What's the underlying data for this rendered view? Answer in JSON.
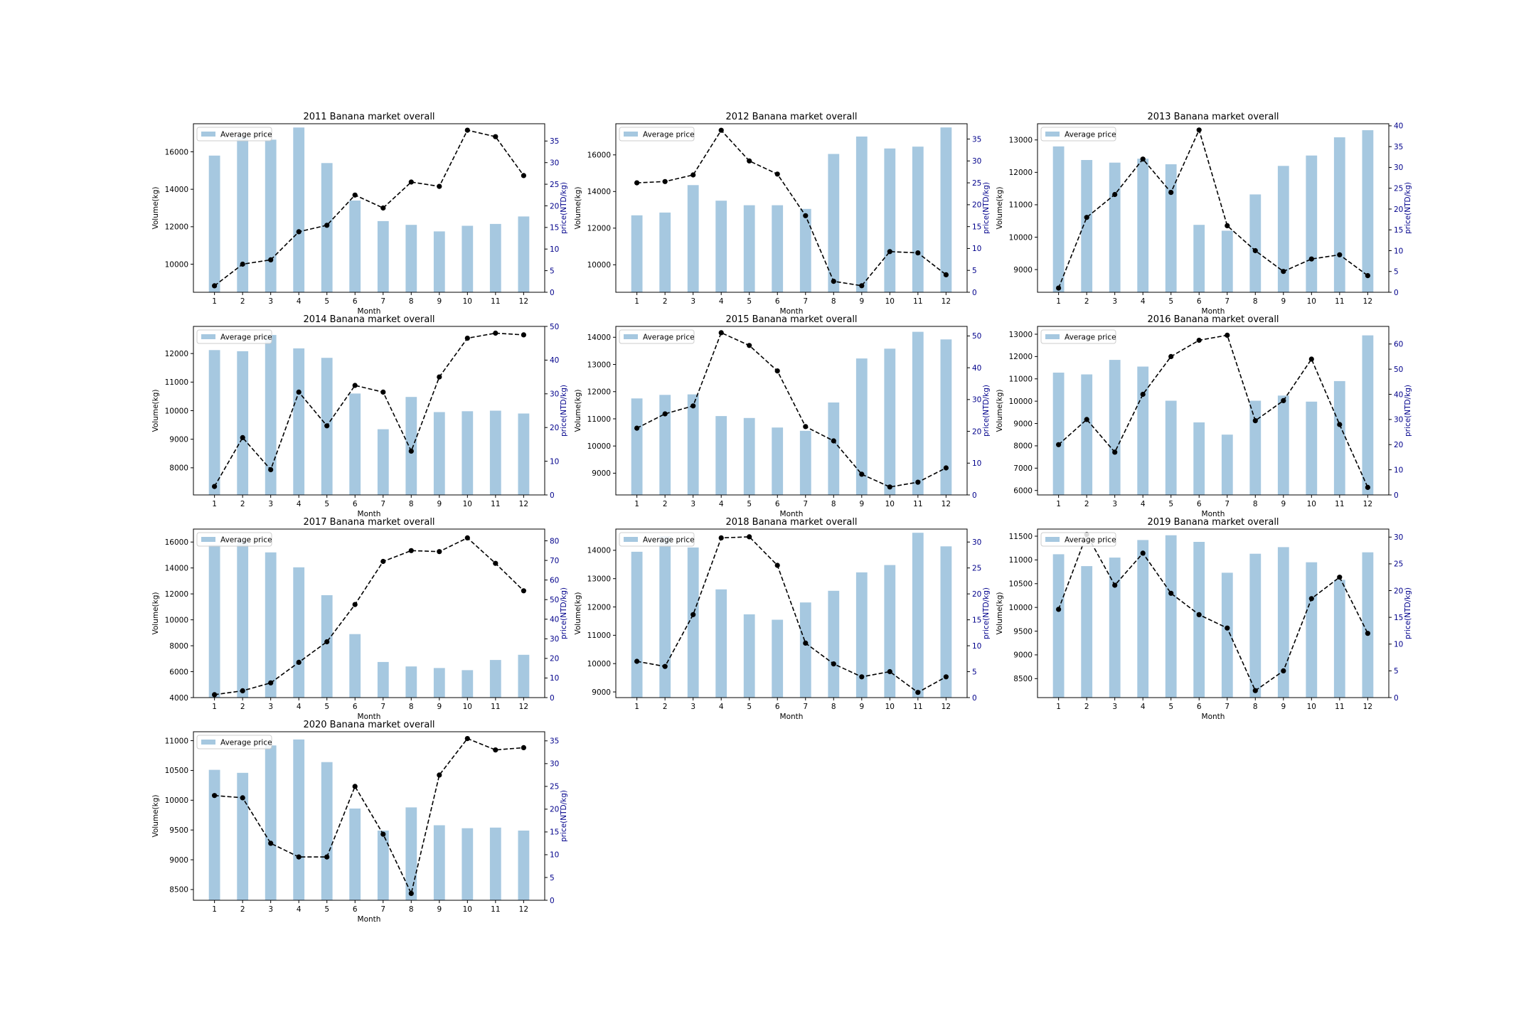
{
  "chart_data": [
    {
      "type": "bar",
      "title": "2011 Banana market overall",
      "xlabel": "Month",
      "ylabel": "Volume(kg)",
      "y2label": "price(NTD/kg)",
      "legend": "top-left",
      "legend_label": "Average price",
      "categories": [
        "1",
        "2",
        "3",
        "4",
        "5",
        "6",
        "7",
        "8",
        "9",
        "10",
        "11",
        "12"
      ],
      "bar_values": [
        15800,
        16800,
        16650,
        17300,
        15400,
        13400,
        12300,
        12100,
        11750,
        12050,
        12150,
        12550
      ],
      "ylim": [
        8500,
        17500
      ],
      "yticks": [
        10000,
        12000,
        14000,
        16000
      ],
      "line_values": [
        1.5,
        6.5,
        7.5,
        14,
        15.5,
        22.5,
        19.5,
        25.5,
        24.5,
        37.5,
        36,
        27
      ],
      "y2lim": [
        0,
        39
      ],
      "y2ticks": [
        0,
        5,
        10,
        15,
        20,
        25,
        30,
        35
      ],
      "bar_color": "#a6c8e0",
      "line_color": "#000000",
      "axis2_color": "#00008b"
    },
    {
      "type": "bar",
      "title": "2012 Banana market overall",
      "xlabel": "Month",
      "ylabel": "Volume(kg)",
      "y2label": "price(NTD/kg)",
      "legend": "top-left",
      "legend_label": "Average price",
      "categories": [
        "1",
        "2",
        "3",
        "4",
        "5",
        "6",
        "7",
        "8",
        "9",
        "10",
        "11",
        "12"
      ],
      "bar_values": [
        12700,
        12850,
        14350,
        13500,
        13250,
        13250,
        13050,
        16050,
        17000,
        16350,
        16450,
        17500
      ],
      "ylim": [
        8500,
        17700
      ],
      "yticks": [
        10000,
        12000,
        14000,
        16000
      ],
      "line_values": [
        25,
        25.3,
        26.8,
        37,
        30,
        27,
        17.5,
        2.5,
        1.5,
        9.3,
        9,
        4
      ],
      "y2lim": [
        0,
        38.5
      ],
      "y2ticks": [
        0,
        5,
        10,
        15,
        20,
        25,
        30,
        35
      ],
      "bar_color": "#a6c8e0",
      "line_color": "#000000",
      "axis2_color": "#00008b"
    },
    {
      "type": "bar",
      "title": "2013 Banana market overall",
      "xlabel": "Month",
      "ylabel": "Volume(kg)",
      "y2label": "price(NTD/kg)",
      "legend": "top-left",
      "legend_label": "Average price",
      "categories": [
        "1",
        "2",
        "3",
        "4",
        "5",
        "6",
        "7",
        "8",
        "9",
        "10",
        "11",
        "12"
      ],
      "bar_values": [
        12800,
        12380,
        12300,
        12420,
        12250,
        10380,
        10200,
        11320,
        12200,
        12520,
        13080,
        13300
      ],
      "ylim": [
        8300,
        13500
      ],
      "yticks": [
        9000,
        10000,
        11000,
        12000,
        13000
      ],
      "line_values": [
        1,
        18,
        23.5,
        32,
        24,
        39,
        16,
        10,
        5,
        8,
        9,
        4
      ],
      "y2lim": [
        0,
        40.5
      ],
      "y2ticks": [
        0,
        5,
        10,
        15,
        20,
        25,
        30,
        35,
        40
      ],
      "bar_color": "#a6c8e0",
      "line_color": "#000000",
      "axis2_color": "#00008b"
    },
    {
      "type": "bar",
      "title": "2014 Banana market overall",
      "xlabel": "Month",
      "ylabel": "Volume(kg)",
      "y2label": "price(NTD/kg)",
      "legend": "top-left",
      "legend_label": "Average price",
      "categories": [
        "1",
        "2",
        "3",
        "4",
        "5",
        "6",
        "7",
        "8",
        "9",
        "10",
        "11",
        "12"
      ],
      "bar_values": [
        12120,
        12080,
        12650,
        12180,
        11850,
        10600,
        9350,
        10480,
        9950,
        9980,
        10000,
        9900
      ],
      "ylim": [
        7050,
        12950
      ],
      "yticks": [
        8000,
        9000,
        10000,
        11000,
        12000
      ],
      "line_values": [
        2.5,
        17,
        7.5,
        30.5,
        20.5,
        32.5,
        30.5,
        13,
        35,
        46.5,
        48,
        47.5
      ],
      "y2lim": [
        0,
        50
      ],
      "y2ticks": [
        0,
        10,
        20,
        30,
        40,
        50
      ],
      "bar_color": "#a6c8e0",
      "line_color": "#000000",
      "axis2_color": "#00008b"
    },
    {
      "type": "bar",
      "title": "2015 Banana market overall",
      "xlabel": "Month",
      "ylabel": "Volume(kg)",
      "y2label": "price(NTD/kg)",
      "legend": "top-left",
      "legend_label": "Average price",
      "categories": [
        "1",
        "2",
        "3",
        "4",
        "5",
        "6",
        "7",
        "8",
        "9",
        "10",
        "11",
        "12"
      ],
      "bar_values": [
        11750,
        11880,
        11900,
        11100,
        11030,
        10680,
        10560,
        11600,
        13220,
        13580,
        14200,
        13920
      ],
      "ylim": [
        8200,
        14400
      ],
      "yticks": [
        9000,
        10000,
        11000,
        12000,
        13000,
        14000
      ],
      "line_values": [
        21,
        25.5,
        28,
        51,
        47,
        39,
        21.5,
        17,
        6.5,
        2.5,
        4,
        8.5
      ],
      "y2lim": [
        0,
        53
      ],
      "y2ticks": [
        0,
        10,
        20,
        30,
        40,
        50
      ],
      "bar_color": "#a6c8e0",
      "line_color": "#000000",
      "axis2_color": "#00008b"
    },
    {
      "type": "bar",
      "title": "2016 Banana market overall",
      "xlabel": "Month",
      "ylabel": "Volume(kg)",
      "y2label": "price(NTD/kg)",
      "legend": "top-left",
      "legend_label": "Average price",
      "categories": [
        "1",
        "2",
        "3",
        "4",
        "5",
        "6",
        "7",
        "8",
        "9",
        "10",
        "11",
        "12"
      ],
      "bar_values": [
        11280,
        11200,
        11850,
        11550,
        10020,
        9050,
        8500,
        10020,
        10250,
        9980,
        10900,
        12950
      ],
      "ylim": [
        5800,
        13350
      ],
      "yticks": [
        6000,
        7000,
        8000,
        9000,
        10000,
        11000,
        12000,
        13000
      ],
      "line_values": [
        20,
        30,
        17,
        40,
        55,
        61.5,
        63.5,
        29.5,
        37.5,
        54,
        28,
        3
      ],
      "y2lim": [
        0,
        67
      ],
      "y2ticks": [
        0,
        10,
        20,
        30,
        40,
        50,
        60
      ],
      "bar_color": "#a6c8e0",
      "line_color": "#000000",
      "axis2_color": "#00008b"
    },
    {
      "type": "bar",
      "title": "2017 Banana market overall",
      "xlabel": "Month",
      "ylabel": "Volume(kg)",
      "y2label": "price(NTD/kg)",
      "legend": "top-left",
      "legend_label": "Average price",
      "categories": [
        "1",
        "2",
        "3",
        "4",
        "5",
        "6",
        "7",
        "8",
        "9",
        "10",
        "11",
        "12"
      ],
      "bar_values": [
        15800,
        16100,
        15200,
        14050,
        11900,
        8900,
        6750,
        6400,
        6280,
        6120,
        6900,
        7300
      ],
      "ylim": [
        4000,
        17000
      ],
      "yticks": [
        4000,
        6000,
        8000,
        10000,
        12000,
        14000,
        16000
      ],
      "line_values": [
        1.5,
        3.5,
        7.5,
        18,
        28.5,
        47.5,
        69.5,
        75,
        74.5,
        81.5,
        68.5,
        54.5
      ],
      "y2lim": [
        0,
        86
      ],
      "y2ticks": [
        0,
        10,
        20,
        30,
        40,
        50,
        60,
        70,
        80
      ],
      "bar_color": "#a6c8e0",
      "line_color": "#000000",
      "axis2_color": "#00008b"
    },
    {
      "type": "bar",
      "title": "2018 Banana market overall",
      "xlabel": "Month",
      "ylabel": "Volume(kg)",
      "y2label": "price(NTD/kg)",
      "legend": "top-left",
      "legend_label": "Average price",
      "categories": [
        "1",
        "2",
        "3",
        "4",
        "5",
        "6",
        "7",
        "8",
        "9",
        "10",
        "11",
        "12"
      ],
      "bar_values": [
        13950,
        14500,
        14100,
        12620,
        11740,
        11550,
        12160,
        12570,
        13220,
        13480,
        14620,
        14140
      ],
      "ylim": [
        8800,
        14750
      ],
      "yticks": [
        9000,
        10000,
        11000,
        12000,
        13000,
        14000
      ],
      "line_values": [
        7,
        6,
        16,
        30.8,
        31,
        25.5,
        10.5,
        6.5,
        4,
        5,
        1,
        4
      ],
      "y2lim": [
        0,
        32.5
      ],
      "y2ticks": [
        0,
        5,
        10,
        15,
        20,
        25,
        30
      ],
      "bar_color": "#a6c8e0",
      "line_color": "#000000",
      "axis2_color": "#00008b"
    },
    {
      "type": "bar",
      "title": "2019 Banana market overall",
      "xlabel": "Month",
      "ylabel": "Volume(kg)",
      "y2label": "price(NTD/kg)",
      "legend": "top-left",
      "legend_label": "Average price",
      "categories": [
        "1",
        "2",
        "3",
        "4",
        "5",
        "6",
        "7",
        "8",
        "9",
        "10",
        "11",
        "12"
      ],
      "bar_values": [
        11120,
        10870,
        11050,
        11420,
        11520,
        11380,
        10730,
        11130,
        11270,
        10950,
        10580,
        11160
      ],
      "ylim": [
        8100,
        11650
      ],
      "yticks": [
        8500,
        9000,
        9500,
        10000,
        10500,
        11000,
        11500
      ],
      "line_values": [
        16.5,
        30.5,
        21,
        27,
        19.5,
        15.5,
        13,
        1.3,
        5,
        18.5,
        22.5,
        12
      ],
      "y2lim": [
        0,
        31.5
      ],
      "y2ticks": [
        0,
        5,
        10,
        15,
        20,
        25,
        30
      ],
      "bar_color": "#a6c8e0",
      "line_color": "#000000",
      "axis2_color": "#00008b"
    },
    {
      "type": "bar",
      "title": "2020 Banana market overall",
      "xlabel": "Month",
      "ylabel": "Volume(kg)",
      "y2label": "price(NTD/kg)",
      "legend": "top-left",
      "legend_label": "Average price",
      "categories": [
        "1",
        "2",
        "3",
        "4",
        "5",
        "6",
        "7",
        "8",
        "9",
        "10",
        "11",
        "12"
      ],
      "bar_values": [
        10510,
        10460,
        10920,
        11020,
        10640,
        9860,
        9490,
        9880,
        9580,
        9530,
        9540,
        9490
      ],
      "ylim": [
        8320,
        11150
      ],
      "yticks": [
        8500,
        9000,
        9500,
        10000,
        10500,
        11000
      ],
      "line_values": [
        23,
        22.5,
        12.5,
        9.5,
        9.5,
        25,
        14.5,
        1.5,
        27.5,
        35.5,
        33,
        33.5
      ],
      "y2lim": [
        0,
        37
      ],
      "y2ticks": [
        0,
        5,
        10,
        15,
        20,
        25,
        30,
        35
      ],
      "bar_color": "#a6c8e0",
      "line_color": "#000000",
      "axis2_color": "#00008b"
    }
  ]
}
